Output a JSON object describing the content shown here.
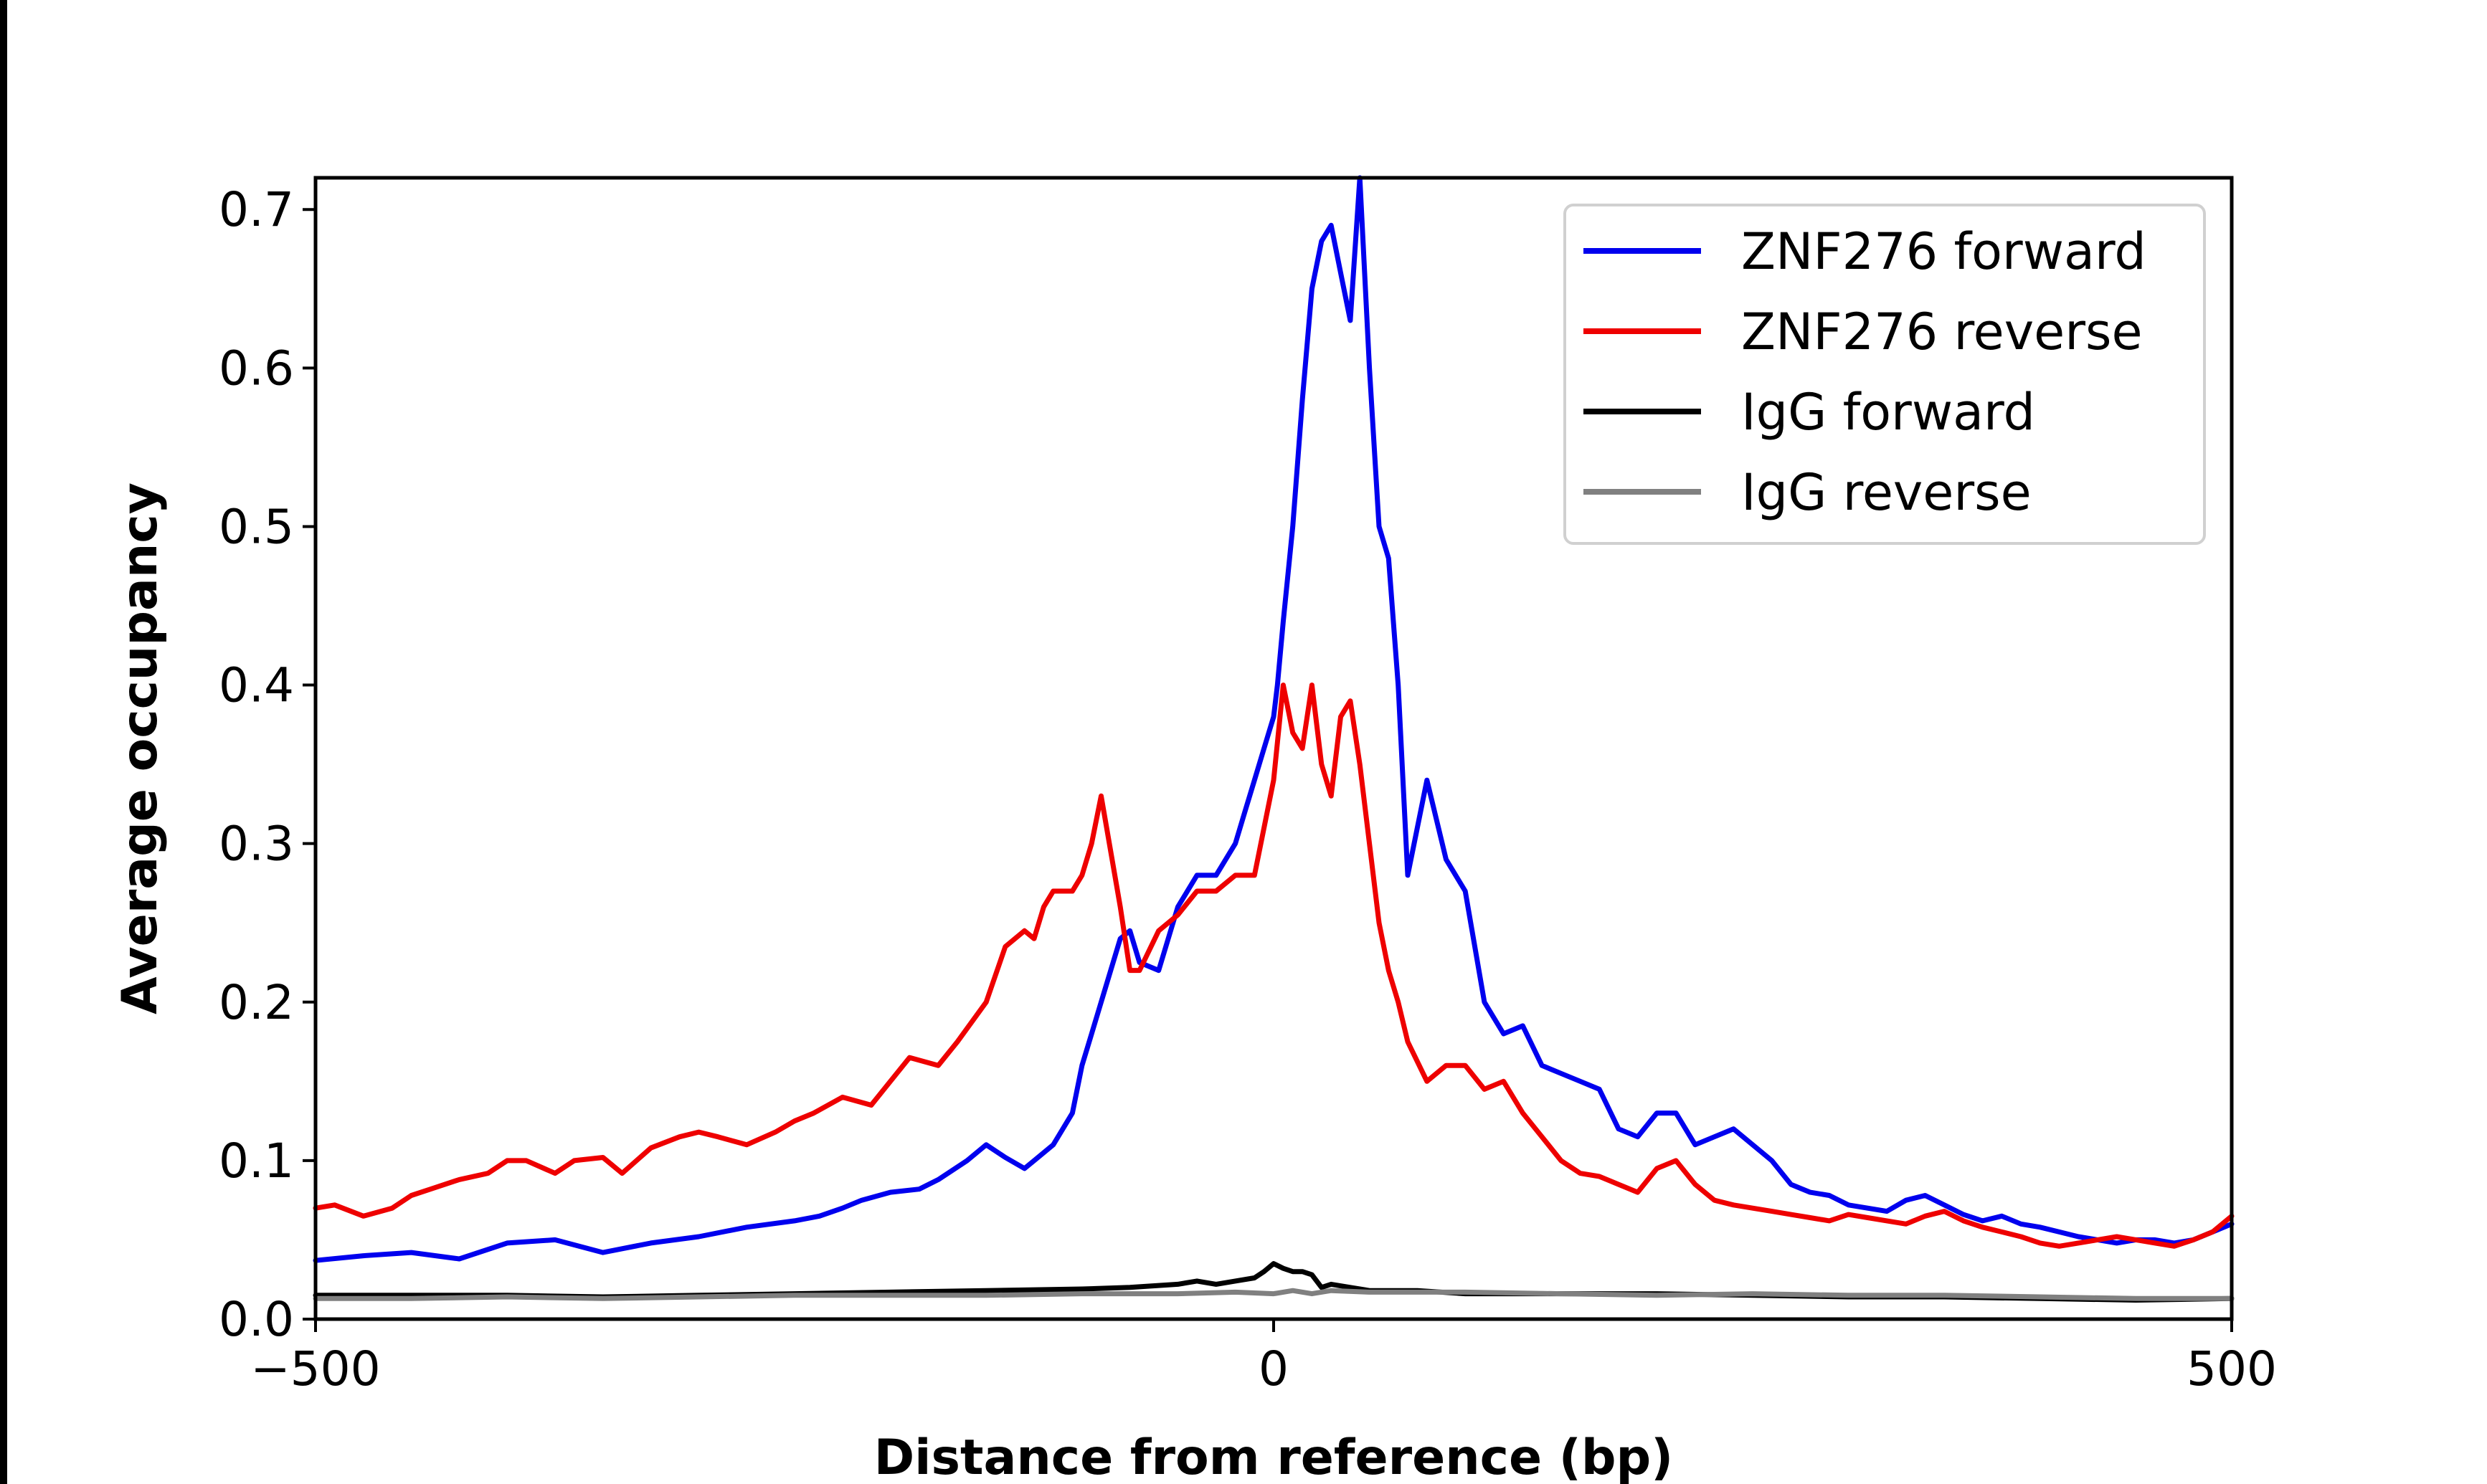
{
  "chart_data": {
    "type": "line",
    "title": "",
    "xlabel": "Distance from reference (bp)",
    "ylabel": "Average occupancy",
    "xlim": [
      -500,
      500
    ],
    "ylim": [
      0,
      0.72
    ],
    "grid": false,
    "legend_position": "top-right",
    "xticks": [
      -500,
      0,
      500
    ],
    "xtick_labels": [
      "−500",
      "0",
      "500"
    ],
    "yticks": [
      0.0,
      0.1,
      0.2,
      0.3,
      0.4,
      0.5,
      0.6,
      0.7
    ],
    "ytick_labels": [
      "0.0",
      "0.1",
      "0.2",
      "0.3",
      "0.4",
      "0.5",
      "0.6",
      "0.7"
    ],
    "series": [
      {
        "name": "ZNF276 forward",
        "color": "#0000ee",
        "x": [
          -500,
          -475,
          -450,
          -425,
          -400,
          -375,
          -350,
          -325,
          -300,
          -275,
          -250,
          -237,
          -225,
          -215,
          -200,
          -185,
          -175,
          -160,
          -150,
          -140,
          -130,
          -125,
          -115,
          -105,
          -100,
          -95,
          -90,
          -80,
          -75,
          -70,
          -60,
          -50,
          -40,
          -30,
          -25,
          -20,
          -15,
          -10,
          -5,
          0,
          2,
          5,
          10,
          15,
          20,
          25,
          30,
          35,
          40,
          45,
          50,
          55,
          60,
          65,
          70,
          80,
          90,
          100,
          110,
          120,
          130,
          140,
          150,
          160,
          170,
          180,
          190,
          200,
          210,
          220,
          230,
          240,
          250,
          260,
          270,
          280,
          290,
          300,
          310,
          320,
          330,
          340,
          350,
          360,
          370,
          380,
          390,
          400,
          410,
          420,
          430,
          440,
          450,
          460,
          470,
          480,
          490,
          500
        ],
        "values": [
          0.037,
          0.04,
          0.042,
          0.038,
          0.048,
          0.05,
          0.042,
          0.048,
          0.052,
          0.058,
          0.062,
          0.065,
          0.07,
          0.075,
          0.08,
          0.082,
          0.088,
          0.1,
          0.11,
          0.102,
          0.095,
          0.1,
          0.11,
          0.13,
          0.16,
          0.18,
          0.2,
          0.24,
          0.245,
          0.225,
          0.22,
          0.26,
          0.28,
          0.28,
          0.29,
          0.3,
          0.32,
          0.34,
          0.36,
          0.38,
          0.4,
          0.44,
          0.5,
          0.58,
          0.65,
          0.68,
          0.69,
          0.66,
          0.63,
          0.72,
          0.6,
          0.5,
          0.48,
          0.4,
          0.28,
          0.34,
          0.29,
          0.27,
          0.2,
          0.18,
          0.185,
          0.16,
          0.155,
          0.15,
          0.145,
          0.12,
          0.115,
          0.13,
          0.13,
          0.11,
          0.115,
          0.12,
          0.11,
          0.1,
          0.085,
          0.08,
          0.078,
          0.072,
          0.07,
          0.068,
          0.075,
          0.078,
          0.072,
          0.066,
          0.062,
          0.065,
          0.06,
          0.058,
          0.055,
          0.052,
          0.05,
          0.048,
          0.05,
          0.05,
          0.048,
          0.05,
          0.055,
          0.06
        ]
      },
      {
        "name": "ZNF276 reverse",
        "color": "#ee0000",
        "x": [
          -500,
          -490,
          -475,
          -460,
          -450,
          -440,
          -425,
          -410,
          -400,
          -390,
          -375,
          -365,
          -350,
          -340,
          -325,
          -310,
          -300,
          -290,
          -275,
          -260,
          -250,
          -240,
          -225,
          -210,
          -200,
          -190,
          -175,
          -165,
          -150,
          -140,
          -130,
          -125,
          -120,
          -115,
          -105,
          -100,
          -95,
          -90,
          -80,
          -75,
          -70,
          -60,
          -50,
          -40,
          -30,
          -20,
          -10,
          0,
          5,
          10,
          15,
          20,
          25,
          30,
          35,
          40,
          45,
          50,
          55,
          60,
          65,
          70,
          80,
          90,
          100,
          110,
          120,
          130,
          140,
          150,
          160,
          170,
          180,
          190,
          200,
          210,
          220,
          230,
          240,
          250,
          260,
          270,
          280,
          290,
          300,
          310,
          320,
          330,
          340,
          350,
          360,
          370,
          380,
          390,
          400,
          410,
          420,
          430,
          440,
          450,
          460,
          470,
          480,
          490,
          500
        ],
        "values": [
          0.07,
          0.072,
          0.065,
          0.07,
          0.078,
          0.082,
          0.088,
          0.092,
          0.1,
          0.1,
          0.092,
          0.1,
          0.102,
          0.092,
          0.108,
          0.115,
          0.118,
          0.115,
          0.11,
          0.118,
          0.125,
          0.13,
          0.14,
          0.135,
          0.15,
          0.165,
          0.16,
          0.175,
          0.2,
          0.235,
          0.245,
          0.24,
          0.26,
          0.27,
          0.27,
          0.28,
          0.3,
          0.33,
          0.26,
          0.22,
          0.22,
          0.245,
          0.255,
          0.27,
          0.27,
          0.28,
          0.28,
          0.34,
          0.4,
          0.37,
          0.36,
          0.4,
          0.35,
          0.33,
          0.38,
          0.39,
          0.35,
          0.3,
          0.25,
          0.22,
          0.2,
          0.175,
          0.15,
          0.16,
          0.16,
          0.145,
          0.15,
          0.13,
          0.115,
          0.1,
          0.092,
          0.09,
          0.085,
          0.08,
          0.095,
          0.1,
          0.085,
          0.075,
          0.072,
          0.07,
          0.068,
          0.066,
          0.064,
          0.062,
          0.066,
          0.064,
          0.062,
          0.06,
          0.065,
          0.068,
          0.062,
          0.058,
          0.055,
          0.052,
          0.048,
          0.046,
          0.048,
          0.05,
          0.052,
          0.05,
          0.048,
          0.046,
          0.05,
          0.055,
          0.065
        ]
      },
      {
        "name": "IgG forward",
        "color": "#000000",
        "x": [
          -500,
          -450,
          -400,
          -350,
          -300,
          -250,
          -200,
          -150,
          -100,
          -75,
          -50,
          -40,
          -30,
          -20,
          -10,
          -5,
          0,
          5,
          10,
          15,
          20,
          25,
          30,
          40,
          50,
          75,
          100,
          150,
          200,
          250,
          300,
          350,
          400,
          450,
          500
        ],
        "values": [
          0.015,
          0.015,
          0.015,
          0.014,
          0.015,
          0.016,
          0.017,
          0.018,
          0.019,
          0.02,
          0.022,
          0.024,
          0.022,
          0.024,
          0.026,
          0.03,
          0.035,
          0.032,
          0.03,
          0.03,
          0.028,
          0.02,
          0.022,
          0.02,
          0.018,
          0.018,
          0.016,
          0.016,
          0.016,
          0.015,
          0.014,
          0.014,
          0.013,
          0.012,
          0.013
        ]
      },
      {
        "name": "IgG reverse",
        "color": "#808080",
        "x": [
          -500,
          -450,
          -400,
          -350,
          -300,
          -250,
          -200,
          -150,
          -100,
          -50,
          -20,
          0,
          10,
          20,
          30,
          50,
          100,
          150,
          200,
          250,
          300,
          350,
          400,
          450,
          500
        ],
        "values": [
          0.013,
          0.013,
          0.014,
          0.013,
          0.014,
          0.015,
          0.015,
          0.015,
          0.016,
          0.016,
          0.017,
          0.016,
          0.018,
          0.016,
          0.018,
          0.017,
          0.017,
          0.016,
          0.015,
          0.016,
          0.015,
          0.015,
          0.014,
          0.013,
          0.013
        ]
      }
    ]
  }
}
